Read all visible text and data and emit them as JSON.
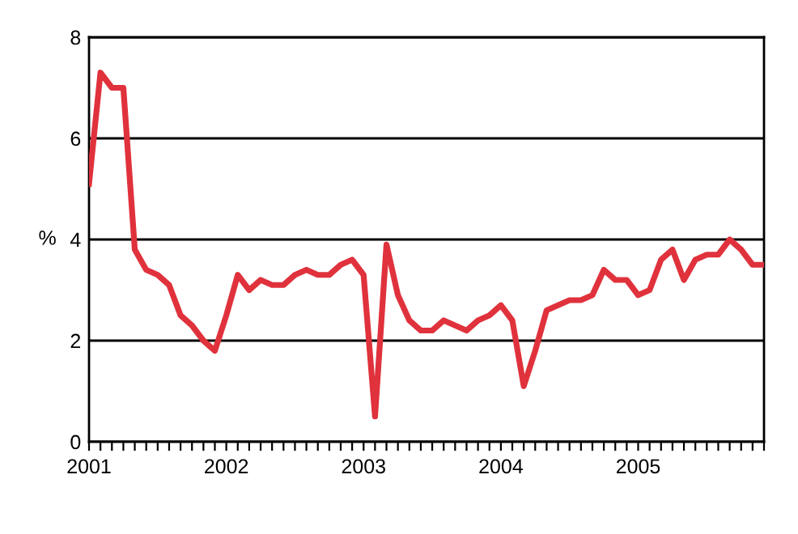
{
  "chart_data": {
    "type": "line",
    "ylabel": "%",
    "categories": [
      "2001",
      null,
      null,
      null,
      null,
      null,
      null,
      null,
      null,
      null,
      null,
      null,
      "2002",
      null,
      null,
      null,
      null,
      null,
      null,
      null,
      null,
      null,
      null,
      null,
      "2003",
      null,
      null,
      null,
      null,
      null,
      null,
      null,
      null,
      null,
      null,
      null,
      "2004",
      null,
      null,
      null,
      null,
      null,
      null,
      null,
      null,
      null,
      null,
      null,
      "2005",
      null,
      null,
      null,
      null,
      null,
      null,
      null,
      null,
      null,
      null,
      null
    ],
    "series": [
      {
        "color": "#e0323c",
        "values": [
          5.1,
          7.3,
          7.0,
          7.0,
          3.8,
          3.4,
          3.3,
          3.1,
          2.5,
          2.3,
          2.0,
          1.8,
          2.5,
          3.3,
          3.0,
          3.2,
          3.1,
          3.1,
          3.3,
          3.4,
          3.3,
          3.3,
          3.5,
          3.6,
          3.3,
          0.5,
          3.9,
          2.9,
          2.4,
          2.2,
          2.2,
          2.4,
          2.3,
          2.2,
          2.4,
          2.5,
          2.7,
          2.4,
          1.1,
          1.8,
          2.6,
          2.7,
          2.8,
          2.8,
          2.9,
          3.4,
          3.2,
          3.2,
          2.9,
          3.0,
          3.6,
          3.8,
          3.2,
          3.6,
          3.7,
          3.7,
          4.0,
          3.8,
          3.5,
          3.5
        ]
      }
    ],
    "ylim": [
      0,
      8
    ],
    "yticks": [
      0,
      2,
      4,
      6,
      8
    ],
    "grid": "y",
    "marker": "none",
    "line_style": "solid"
  }
}
